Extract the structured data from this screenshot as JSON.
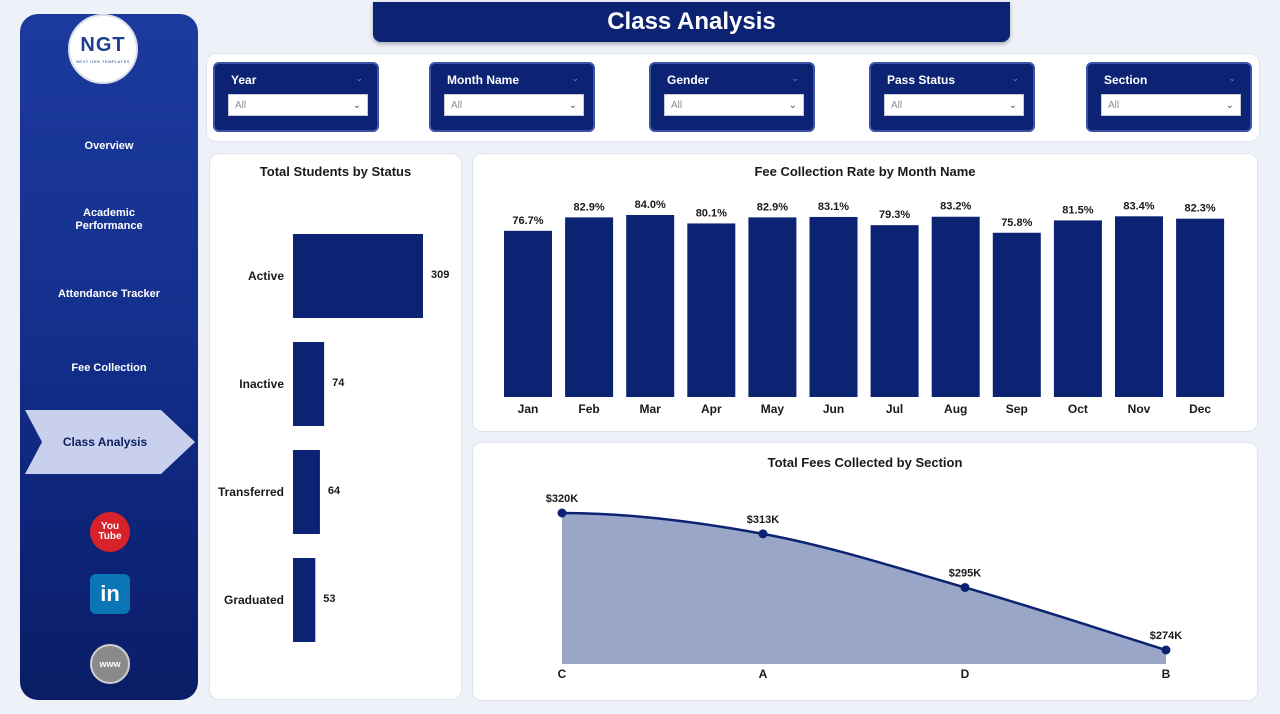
{
  "app": {
    "title": "Class Analysis",
    "logo": {
      "text": "NGT",
      "subtitle": "NEXT GEN TEMPLATES"
    }
  },
  "sidebar": {
    "items": [
      {
        "label": "Overview"
      },
      {
        "label": "Academic Performance"
      },
      {
        "label": "Attendance Tracker"
      },
      {
        "label": "Fee Collection"
      },
      {
        "label": "Class Analysis",
        "active": true
      }
    ],
    "social": [
      {
        "icon": "youtube-icon",
        "label": "You Tube"
      },
      {
        "icon": "linkedin-icon",
        "label": "in"
      },
      {
        "icon": "website-icon",
        "label": "www"
      }
    ]
  },
  "filters": [
    {
      "label": "Year",
      "value": "All"
    },
    {
      "label": "Month Name",
      "value": "All"
    },
    {
      "label": "Gender",
      "value": "All"
    },
    {
      "label": "Pass Status",
      "value": "All"
    },
    {
      "label": "Section",
      "value": "All"
    }
  ],
  "colors": {
    "navy": "#0c2272",
    "area_fill": "#9aa6c7",
    "bar": "#0c2272"
  },
  "chart_data": [
    {
      "type": "bar",
      "orientation": "horizontal",
      "title": "Total Students by Status",
      "categories": [
        "Active",
        "Inactive",
        "Transferred",
        "Graduated"
      ],
      "values": [
        309,
        74,
        64,
        53
      ],
      "value_labels": [
        "309",
        "74",
        "64",
        "53"
      ]
    },
    {
      "type": "bar",
      "title": "Fee Collection Rate by Month Name",
      "categories": [
        "Jan",
        "Feb",
        "Mar",
        "Apr",
        "May",
        "Jun",
        "Jul",
        "Aug",
        "Sep",
        "Oct",
        "Nov",
        "Dec"
      ],
      "values": [
        76.7,
        82.9,
        84.0,
        80.1,
        82.9,
        83.1,
        79.3,
        83.2,
        75.8,
        81.5,
        83.4,
        82.3
      ],
      "value_labels": [
        "76.7%",
        "82.9%",
        "84.0%",
        "80.1%",
        "82.9%",
        "83.1%",
        "79.3%",
        "83.2%",
        "75.8%",
        "81.5%",
        "83.4%",
        "82.3%"
      ],
      "ylim": [
        0,
        84
      ]
    },
    {
      "type": "area",
      "title": "Total Fees Collected by Section",
      "categories": [
        "C",
        "A",
        "D",
        "B"
      ],
      "values": [
        320,
        313,
        295,
        274
      ],
      "value_labels": [
        "$320K",
        "$313K",
        "$295K",
        "$274K"
      ],
      "unit": "K USD"
    }
  ]
}
